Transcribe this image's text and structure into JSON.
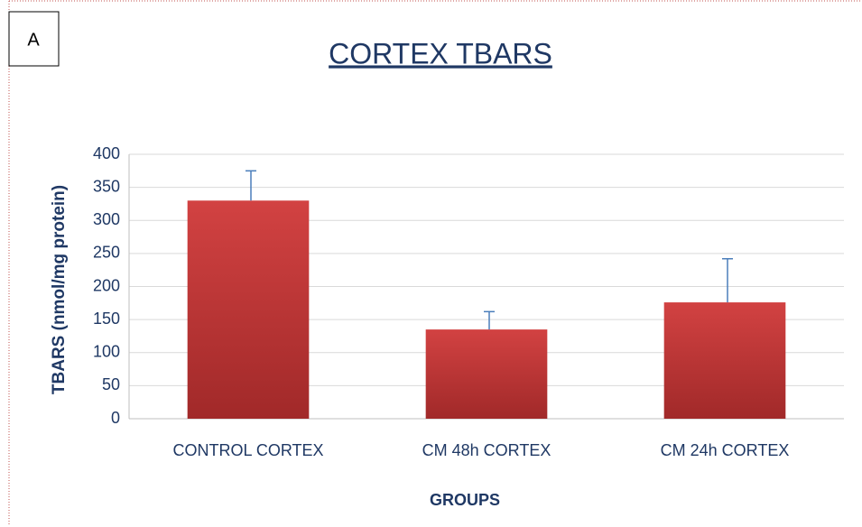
{
  "chart_data": {
    "type": "bar",
    "panel_label": "A",
    "title": "CORTEX TBARS",
    "x_label": "GROUPS",
    "y_label": "TBARS (nmol/mg protein)",
    "categories": [
      "CONTROL CORTEX",
      "CM 48h CORTEX",
      "CM 24h CORTEX"
    ],
    "values": [
      330,
      135,
      176
    ],
    "errors": [
      45,
      27,
      66
    ],
    "color": "#c83a3a",
    "error_color": "#4a7ebb",
    "ylim": [
      0,
      400
    ],
    "yticks": [
      0,
      50,
      100,
      150,
      200,
      250,
      300,
      350,
      400
    ],
    "grid": true
  }
}
